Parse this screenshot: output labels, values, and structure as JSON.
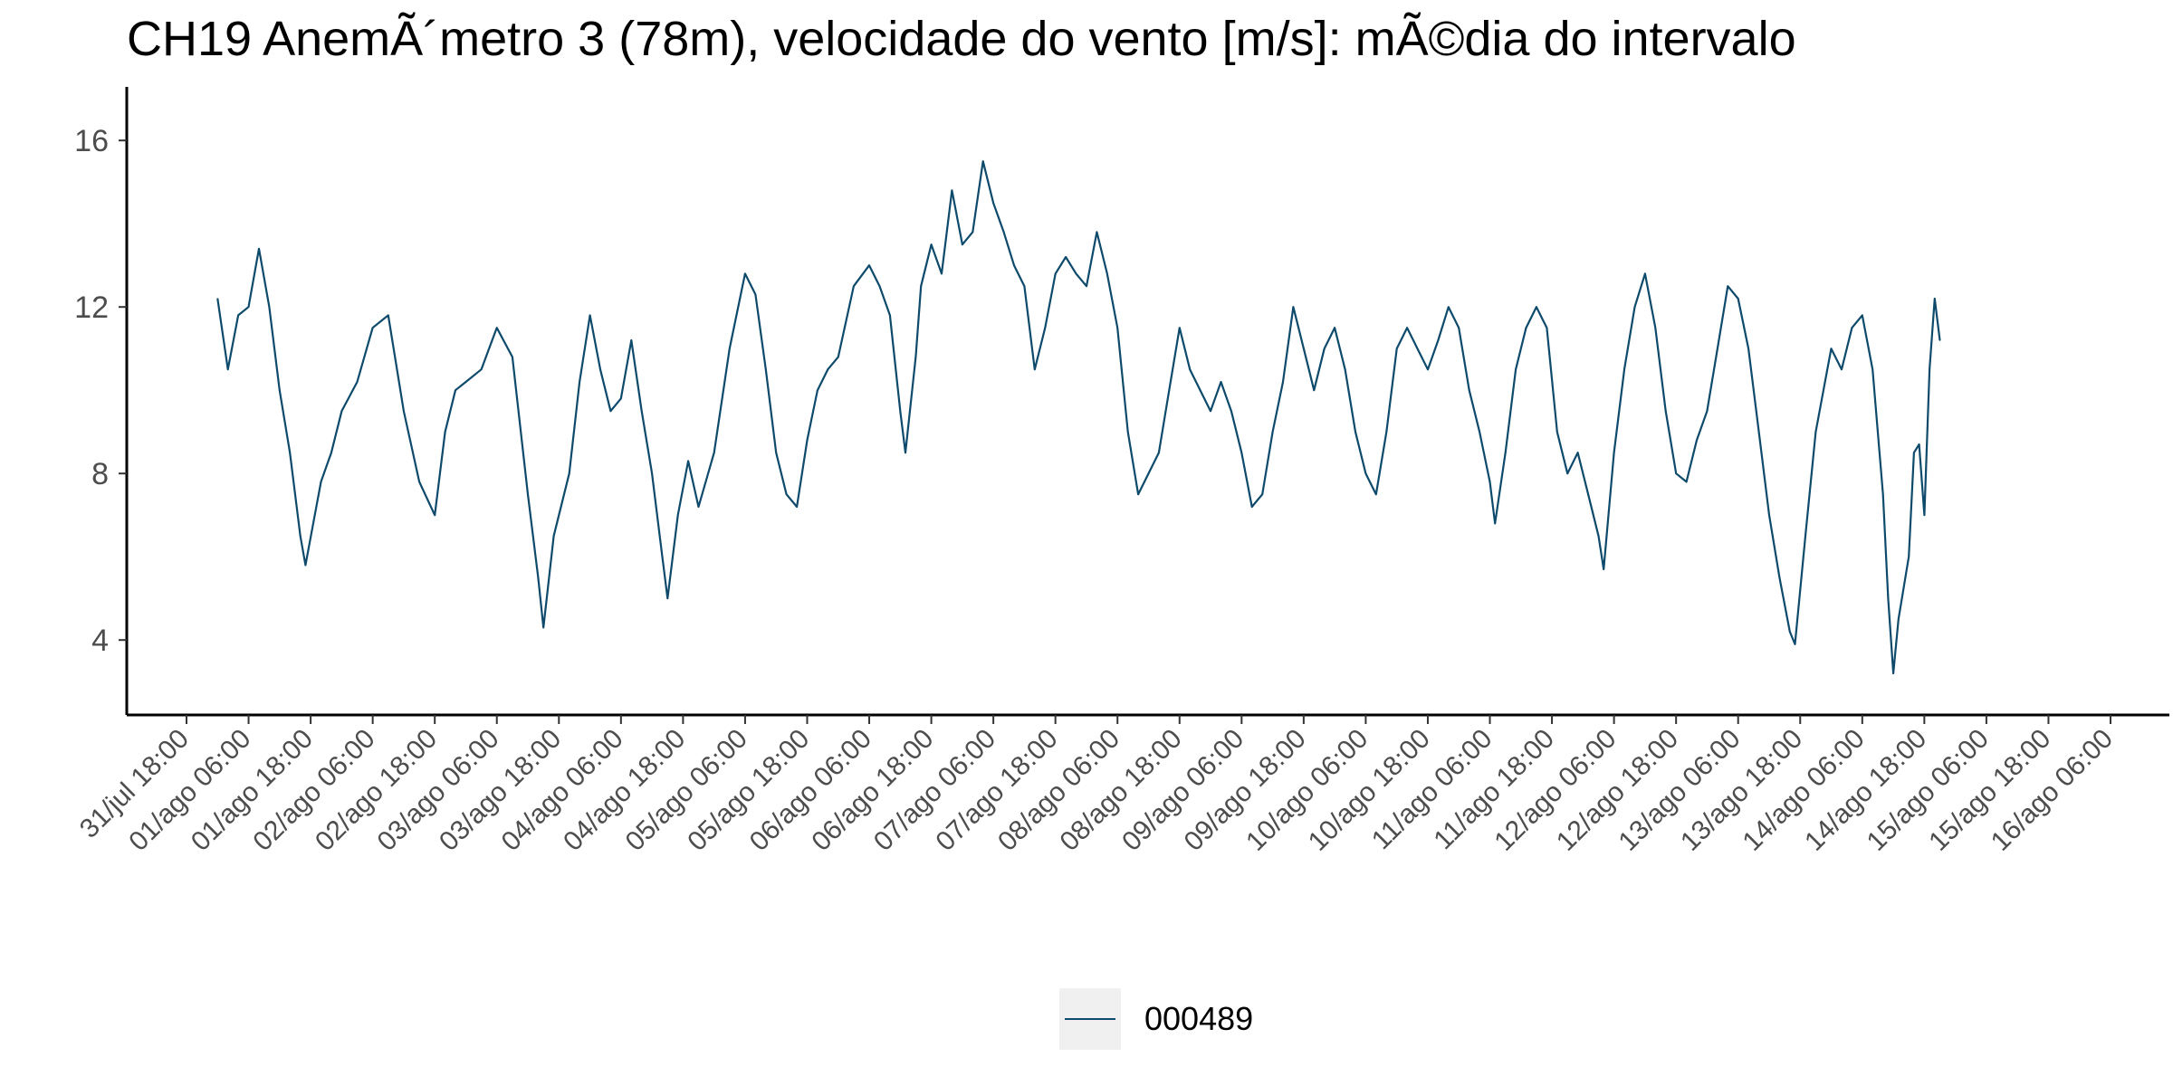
{
  "chart_data": {
    "type": "line",
    "title": "CH19 AnemÃ´metro 3 (78m), velocidade do vento [m/s]: mÃ©dia do intervalo",
    "xlabel": "",
    "ylabel": "",
    "x_ticks": [
      "31/jul 18:00",
      "01/ago 06:00",
      "01/ago 18:00",
      "02/ago 06:00",
      "02/ago 18:00",
      "03/ago 06:00",
      "03/ago 18:00",
      "04/ago 06:00",
      "04/ago 18:00",
      "05/ago 06:00",
      "05/ago 18:00",
      "06/ago 06:00",
      "06/ago 18:00",
      "07/ago 06:00",
      "07/ago 18:00",
      "08/ago 06:00",
      "08/ago 18:00",
      "09/ago 06:00",
      "09/ago 18:00",
      "10/ago 06:00",
      "10/ago 18:00",
      "11/ago 06:00",
      "11/ago 18:00",
      "12/ago 06:00",
      "12/ago 18:00",
      "13/ago 06:00",
      "13/ago 18:00",
      "14/ago 06:00",
      "14/ago 18:00",
      "15/ago 06:00",
      "15/ago 18:00",
      "16/ago 06:00"
    ],
    "xlim": [
      "31/jul 18:00",
      "16/ago 06:00"
    ],
    "y_ticks": [
      4,
      8,
      12,
      16
    ],
    "ylim": [
      2.2,
      17.2
    ],
    "grid": false,
    "legend_position": "bottom",
    "series": [
      {
        "name": "000489",
        "color": "#0e4a6b",
        "points": [
          [
            "01/ago 00:00",
            12.2
          ],
          [
            "01/ago 02:00",
            10.5
          ],
          [
            "01/ago 04:00",
            11.8
          ],
          [
            "01/ago 06:00",
            12.0
          ],
          [
            "01/ago 08:00",
            13.4
          ],
          [
            "01/ago 10:00",
            12.0
          ],
          [
            "01/ago 12:00",
            10.0
          ],
          [
            "01/ago 14:00",
            8.5
          ],
          [
            "01/ago 16:00",
            6.5
          ],
          [
            "01/ago 17:00",
            5.8
          ],
          [
            "01/ago 20:00",
            7.8
          ],
          [
            "01/ago 22:00",
            8.5
          ],
          [
            "02/ago 00:00",
            9.5
          ],
          [
            "02/ago 03:00",
            10.2
          ],
          [
            "02/ago 06:00",
            11.5
          ],
          [
            "02/ago 09:00",
            11.8
          ],
          [
            "02/ago 12:00",
            9.5
          ],
          [
            "02/ago 15:00",
            7.8
          ],
          [
            "02/ago 18:00",
            7.0
          ],
          [
            "02/ago 20:00",
            9.0
          ],
          [
            "02/ago 22:00",
            10.0
          ],
          [
            "03/ago 00:00",
            10.2
          ],
          [
            "03/ago 03:00",
            10.5
          ],
          [
            "03/ago 06:00",
            11.5
          ],
          [
            "03/ago 09:00",
            10.8
          ],
          [
            "03/ago 12:00",
            7.5
          ],
          [
            "03/ago 14:00",
            5.5
          ],
          [
            "03/ago 15:00",
            4.3
          ],
          [
            "03/ago 17:00",
            6.5
          ],
          [
            "03/ago 20:00",
            8.0
          ],
          [
            "03/ago 22:00",
            10.2
          ],
          [
            "04/ago 00:00",
            11.8
          ],
          [
            "04/ago 02:00",
            10.5
          ],
          [
            "04/ago 04:00",
            9.5
          ],
          [
            "04/ago 06:00",
            9.8
          ],
          [
            "04/ago 08:00",
            11.2
          ],
          [
            "04/ago 10:00",
            9.5
          ],
          [
            "04/ago 12:00",
            8.0
          ],
          [
            "04/ago 14:00",
            6.0
          ],
          [
            "04/ago 15:00",
            5.0
          ],
          [
            "04/ago 17:00",
            7.0
          ],
          [
            "04/ago 19:00",
            8.3
          ],
          [
            "04/ago 21:00",
            7.2
          ],
          [
            "05/ago 00:00",
            8.5
          ],
          [
            "05/ago 03:00",
            11.0
          ],
          [
            "05/ago 06:00",
            12.8
          ],
          [
            "05/ago 08:00",
            12.3
          ],
          [
            "05/ago 10:00",
            10.5
          ],
          [
            "05/ago 12:00",
            8.5
          ],
          [
            "05/ago 14:00",
            7.5
          ],
          [
            "05/ago 16:00",
            7.2
          ],
          [
            "05/ago 18:00",
            8.8
          ],
          [
            "05/ago 20:00",
            10.0
          ],
          [
            "05/ago 22:00",
            10.5
          ],
          [
            "06/ago 00:00",
            10.8
          ],
          [
            "06/ago 03:00",
            12.5
          ],
          [
            "06/ago 06:00",
            13.0
          ],
          [
            "06/ago 08:00",
            12.5
          ],
          [
            "06/ago 10:00",
            11.8
          ],
          [
            "06/ago 12:00",
            9.5
          ],
          [
            "06/ago 13:00",
            8.5
          ],
          [
            "06/ago 15:00",
            10.8
          ],
          [
            "06/ago 16:00",
            12.5
          ],
          [
            "06/ago 18:00",
            13.5
          ],
          [
            "06/ago 20:00",
            12.8
          ],
          [
            "06/ago 22:00",
            14.8
          ],
          [
            "07/ago 00:00",
            13.5
          ],
          [
            "07/ago 02:00",
            13.8
          ],
          [
            "07/ago 04:00",
            15.5
          ],
          [
            "07/ago 06:00",
            14.5
          ],
          [
            "07/ago 08:00",
            13.8
          ],
          [
            "07/ago 10:00",
            13.0
          ],
          [
            "07/ago 12:00",
            12.5
          ],
          [
            "07/ago 14:00",
            10.5
          ],
          [
            "07/ago 16:00",
            11.5
          ],
          [
            "07/ago 18:00",
            12.8
          ],
          [
            "07/ago 20:00",
            13.2
          ],
          [
            "07/ago 22:00",
            12.8
          ],
          [
            "08/ago 00:00",
            12.5
          ],
          [
            "08/ago 02:00",
            13.8
          ],
          [
            "08/ago 04:00",
            12.8
          ],
          [
            "08/ago 06:00",
            11.5
          ],
          [
            "08/ago 08:00",
            9.0
          ],
          [
            "08/ago 10:00",
            7.5
          ],
          [
            "08/ago 12:00",
            8.0
          ],
          [
            "08/ago 14:00",
            8.5
          ],
          [
            "08/ago 16:00",
            10.0
          ],
          [
            "08/ago 18:00",
            11.5
          ],
          [
            "08/ago 20:00",
            10.5
          ],
          [
            "08/ago 22:00",
            10.0
          ],
          [
            "09/ago 00:00",
            9.5
          ],
          [
            "09/ago 02:00",
            10.2
          ],
          [
            "09/ago 04:00",
            9.5
          ],
          [
            "09/ago 06:00",
            8.5
          ],
          [
            "09/ago 08:00",
            7.2
          ],
          [
            "09/ago 10:00",
            7.5
          ],
          [
            "09/ago 12:00",
            9.0
          ],
          [
            "09/ago 14:00",
            10.2
          ],
          [
            "09/ago 16:00",
            12.0
          ],
          [
            "09/ago 18:00",
            11.0
          ],
          [
            "09/ago 20:00",
            10.0
          ],
          [
            "09/ago 22:00",
            11.0
          ],
          [
            "10/ago 00:00",
            11.5
          ],
          [
            "10/ago 02:00",
            10.5
          ],
          [
            "10/ago 04:00",
            9.0
          ],
          [
            "10/ago 06:00",
            8.0
          ],
          [
            "10/ago 08:00",
            7.5
          ],
          [
            "10/ago 10:00",
            9.0
          ],
          [
            "10/ago 12:00",
            11.0
          ],
          [
            "10/ago 14:00",
            11.5
          ],
          [
            "10/ago 16:00",
            11.0
          ],
          [
            "10/ago 18:00",
            10.5
          ],
          [
            "10/ago 20:00",
            11.2
          ],
          [
            "10/ago 22:00",
            12.0
          ],
          [
            "11/ago 00:00",
            11.5
          ],
          [
            "11/ago 02:00",
            10.0
          ],
          [
            "11/ago 04:00",
            9.0
          ],
          [
            "11/ago 06:00",
            7.8
          ],
          [
            "11/ago 07:00",
            6.8
          ],
          [
            "11/ago 09:00",
            8.5
          ],
          [
            "11/ago 11:00",
            10.5
          ],
          [
            "11/ago 13:00",
            11.5
          ],
          [
            "11/ago 15:00",
            12.0
          ],
          [
            "11/ago 17:00",
            11.5
          ],
          [
            "11/ago 19:00",
            9.0
          ],
          [
            "11/ago 21:00",
            8.0
          ],
          [
            "11/ago 23:00",
            8.5
          ],
          [
            "12/ago 01:00",
            7.5
          ],
          [
            "12/ago 03:00",
            6.5
          ],
          [
            "12/ago 04:00",
            5.7
          ],
          [
            "12/ago 06:00",
            8.5
          ],
          [
            "12/ago 08:00",
            10.5
          ],
          [
            "12/ago 10:00",
            12.0
          ],
          [
            "12/ago 12:00",
            12.8
          ],
          [
            "12/ago 14:00",
            11.5
          ],
          [
            "12/ago 16:00",
            9.5
          ],
          [
            "12/ago 18:00",
            8.0
          ],
          [
            "12/ago 20:00",
            7.8
          ],
          [
            "12/ago 22:00",
            8.8
          ],
          [
            "13/ago 00:00",
            9.5
          ],
          [
            "13/ago 02:00",
            11.0
          ],
          [
            "13/ago 04:00",
            12.5
          ],
          [
            "13/ago 06:00",
            12.2
          ],
          [
            "13/ago 08:00",
            11.0
          ],
          [
            "13/ago 10:00",
            9.0
          ],
          [
            "13/ago 12:00",
            7.0
          ],
          [
            "13/ago 14:00",
            5.5
          ],
          [
            "13/ago 16:00",
            4.2
          ],
          [
            "13/ago 17:00",
            3.9
          ],
          [
            "13/ago 19:00",
            6.5
          ],
          [
            "13/ago 21:00",
            9.0
          ],
          [
            "14/ago 00:00",
            11.0
          ],
          [
            "14/ago 02:00",
            10.5
          ],
          [
            "14/ago 04:00",
            11.5
          ],
          [
            "14/ago 06:00",
            11.8
          ],
          [
            "14/ago 08:00",
            10.5
          ],
          [
            "14/ago 10:00",
            7.5
          ],
          [
            "14/ago 11:00",
            5.0
          ],
          [
            "14/ago 12:00",
            3.2
          ],
          [
            "14/ago 13:00",
            4.5
          ],
          [
            "14/ago 15:00",
            6.0
          ],
          [
            "14/ago 16:00",
            8.5
          ],
          [
            "14/ago 17:00",
            8.7
          ],
          [
            "14/ago 18:00",
            7.0
          ],
          [
            "14/ago 19:00",
            10.5
          ],
          [
            "14/ago 20:00",
            12.2
          ],
          [
            "14/ago 21:00",
            11.2
          ]
        ]
      }
    ]
  },
  "legend": {
    "items": [
      {
        "label": "000489",
        "color": "#0e4a6b"
      }
    ]
  }
}
